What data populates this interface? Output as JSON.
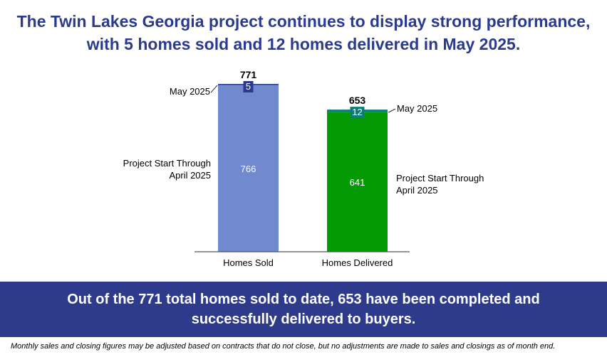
{
  "headline": {
    "line1": "The Twin Lakes Georgia project continues to display strong performance,",
    "line2": "with 5 homes sold and 12 homes delivered in May 2025."
  },
  "chart_data": {
    "type": "bar",
    "stacked": true,
    "categories": [
      "Homes Sold",
      "Homes Delivered"
    ],
    "series": [
      {
        "name": "Project Start Through April 2025",
        "values": [
          766,
          641
        ],
        "colors": [
          "#7189cf",
          "#039a03"
        ],
        "label_color": "#ffffff"
      },
      {
        "name": "May 2025",
        "values": [
          5,
          12
        ],
        "colors": [
          "#2b3a8f",
          "#0d7c77"
        ],
        "label_color": "#ffffff"
      }
    ],
    "totals": [
      771,
      653
    ],
    "segment_labels": {
      "homes_sold_base": "Project Start Through\nApril 2025",
      "homes_sold_top": "May 2025",
      "homes_delivered_base": "Project Start Through\nApril 2025",
      "homes_delivered_top": "May 2025"
    },
    "ylim": [
      0,
      790
    ],
    "grid": false
  },
  "banner": {
    "line1": "Out of the 771 total homes sold to date, 653 have been completed and",
    "line2": "successfully delivered to buyers."
  },
  "footnote": "Monthly sales and closing figures may be adjusted based on contracts that do not close, but no adjustments are made to sales and closings as of month end."
}
